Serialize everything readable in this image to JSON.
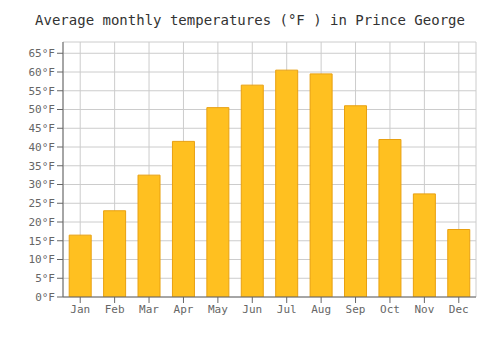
{
  "chart_data": {
    "type": "bar",
    "title": "Average monthly temperatures (°F ) in Prince George",
    "categories": [
      "Jan",
      "Feb",
      "Mar",
      "Apr",
      "May",
      "Jun",
      "Jul",
      "Aug",
      "Sep",
      "Oct",
      "Nov",
      "Dec"
    ],
    "values": [
      16.5,
      23.0,
      32.5,
      41.5,
      50.5,
      56.5,
      60.5,
      59.5,
      51.0,
      42.0,
      27.5,
      18.0
    ],
    "color": "#FFC020",
    "ylim": [
      0,
      68
    ],
    "yticks": [
      {
        "value": 0,
        "label": "0°F"
      },
      {
        "value": 5,
        "label": "5°F"
      },
      {
        "value": 10,
        "label": "10°F"
      },
      {
        "value": 15,
        "label": "15°F"
      },
      {
        "value": 20,
        "label": "20°F"
      },
      {
        "value": 25,
        "label": "25°F"
      },
      {
        "value": 30,
        "label": "30°F"
      },
      {
        "value": 35,
        "label": "35°F"
      },
      {
        "value": 40,
        "label": "40°F"
      },
      {
        "value": 45,
        "label": "45°F"
      },
      {
        "value": 50,
        "label": "50°F"
      },
      {
        "value": 55,
        "label": "55°F"
      },
      {
        "value": 60,
        "label": "60°F"
      },
      {
        "value": 65,
        "label": "65°F"
      }
    ],
    "grid": true
  }
}
